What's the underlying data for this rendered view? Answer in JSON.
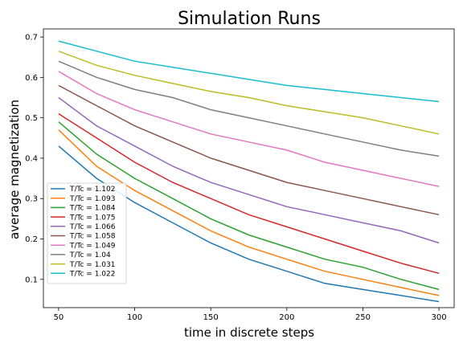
{
  "chart_data": {
    "type": "line",
    "title": "Simulation Runs",
    "xlabel": "time in discrete steps",
    "ylabel": "average magnetization",
    "xlim": [
      40,
      310
    ],
    "ylim": [
      0.03,
      0.72
    ],
    "xticks": [
      50,
      100,
      150,
      200,
      250,
      300
    ],
    "yticks": [
      0.1,
      0.2,
      0.3,
      0.4,
      0.5,
      0.6,
      0.7
    ],
    "xtick_labels": [
      "50",
      "100",
      "150",
      "200",
      "250",
      "300"
    ],
    "ytick_labels": [
      "0.1",
      "0.2",
      "0.3",
      "0.4",
      "0.5",
      "0.6",
      "0.7"
    ],
    "grid": false,
    "legend_position": "lower-left",
    "x": [
      50,
      75,
      100,
      125,
      150,
      175,
      200,
      225,
      250,
      275,
      300
    ],
    "series": [
      {
        "name": "T/Tc = 1.102",
        "color": "#1f77b4",
        "values": [
          0.43,
          0.35,
          0.29,
          0.24,
          0.19,
          0.15,
          0.12,
          0.09,
          0.075,
          0.06,
          0.045
        ]
      },
      {
        "name": "T/Tc = 1.093",
        "color": "#ff7f0e",
        "values": [
          0.47,
          0.38,
          0.32,
          0.27,
          0.22,
          0.18,
          0.15,
          0.12,
          0.1,
          0.08,
          0.06
        ]
      },
      {
        "name": "T/Tc = 1.084",
        "color": "#2ca02c",
        "values": [
          0.49,
          0.41,
          0.35,
          0.3,
          0.25,
          0.21,
          0.18,
          0.15,
          0.13,
          0.1,
          0.075
        ]
      },
      {
        "name": "T/Tc = 1.075",
        "color": "#d62728",
        "values": [
          0.51,
          0.45,
          0.39,
          0.34,
          0.3,
          0.26,
          0.23,
          0.2,
          0.17,
          0.14,
          0.115
        ]
      },
      {
        "name": "T/Tc = 1.066",
        "color": "#9467bd",
        "values": [
          0.55,
          0.48,
          0.43,
          0.38,
          0.34,
          0.31,
          0.28,
          0.26,
          0.24,
          0.22,
          0.19
        ]
      },
      {
        "name": "T/Tc = 1.058",
        "color": "#8c564b",
        "values": [
          0.58,
          0.53,
          0.48,
          0.44,
          0.4,
          0.37,
          0.34,
          0.32,
          0.3,
          0.28,
          0.26
        ]
      },
      {
        "name": "T/Tc = 1.049",
        "color": "#e377c2",
        "values": [
          0.615,
          0.56,
          0.52,
          0.49,
          0.46,
          0.44,
          0.42,
          0.39,
          0.37,
          0.35,
          0.33
        ]
      },
      {
        "name": "T/Tc = 1.04",
        "color": "#7f7f7f",
        "values": [
          0.64,
          0.6,
          0.57,
          0.55,
          0.52,
          0.5,
          0.48,
          0.46,
          0.44,
          0.42,
          0.405
        ]
      },
      {
        "name": "T/Tc = 1.031",
        "color": "#bcbd22",
        "values": [
          0.665,
          0.63,
          0.605,
          0.585,
          0.565,
          0.55,
          0.53,
          0.515,
          0.5,
          0.48,
          0.46
        ]
      },
      {
        "name": "T/Tc = 1.022",
        "color": "#17becf",
        "values": [
          0.69,
          0.665,
          0.64,
          0.625,
          0.61,
          0.595,
          0.58,
          0.57,
          0.56,
          0.55,
          0.54
        ]
      }
    ]
  }
}
